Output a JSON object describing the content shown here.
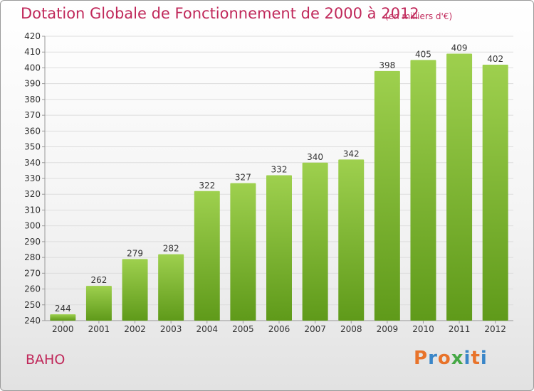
{
  "title": "Dotation Globale de Fonctionnement de 2000 à 2012",
  "unit": "(en milliers d'€)",
  "commune": "BAHO",
  "logo": "Proxiti",
  "logo_colors": [
    "#e8732a",
    "#3a86c8",
    "#e8732a",
    "#45a845",
    "#3a86c8",
    "#e8732a",
    "#3a86c8"
  ],
  "colors": {
    "title": "#c0285a",
    "bar_top": "#9ed04e",
    "bar_bottom": "#5f9a1a",
    "grid": "#dddddd"
  },
  "chart_data": {
    "type": "bar",
    "title": "Dotation Globale de Fonctionnement de 2000 à 2012",
    "subtitle": "(en milliers d'€)",
    "xlabel": "",
    "ylabel": "",
    "categories": [
      "2000",
      "2001",
      "2002",
      "2003",
      "2004",
      "2005",
      "2006",
      "2007",
      "2008",
      "2009",
      "2010",
      "2011",
      "2012"
    ],
    "values": [
      244,
      262,
      279,
      282,
      322,
      327,
      332,
      340,
      342,
      398,
      405,
      409,
      402
    ],
    "data_labels": [
      "244",
      "262",
      "279",
      "282",
      "322",
      "327",
      "332",
      "340",
      "342",
      "398",
      "405",
      "409",
      "402"
    ],
    "ylim": [
      240,
      420
    ],
    "yticks": [
      240,
      250,
      260,
      270,
      280,
      290,
      300,
      310,
      320,
      330,
      340,
      350,
      360,
      370,
      380,
      390,
      400,
      410,
      420
    ],
    "grid": true,
    "legend": "none"
  }
}
